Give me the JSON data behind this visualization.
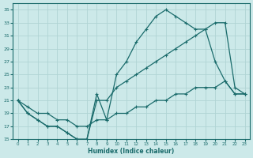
{
  "xlabel": "Humidex (Indice chaleur)",
  "bg_color": "#cce9e9",
  "grid_color": "#b0d4d4",
  "line_color": "#1a6b6b",
  "xlim": [
    -0.5,
    23.5
  ],
  "ylim": [
    15,
    36
  ],
  "xticks": [
    0,
    1,
    2,
    3,
    4,
    5,
    6,
    7,
    8,
    9,
    10,
    11,
    12,
    13,
    14,
    15,
    16,
    17,
    18,
    19,
    20,
    21,
    22,
    23
  ],
  "yticks": [
    15,
    17,
    19,
    21,
    23,
    25,
    27,
    29,
    31,
    33,
    35
  ],
  "line1_x": [
    0,
    1,
    2,
    3,
    4,
    5,
    6,
    7,
    8,
    9,
    10,
    11,
    12,
    13,
    14,
    15,
    16,
    17,
    18,
    19,
    20,
    21,
    22,
    23
  ],
  "line1_y": [
    21,
    19,
    18,
    17,
    17,
    16,
    15,
    15,
    22,
    18,
    25,
    27,
    30,
    32,
    34,
    35,
    34,
    33,
    32,
    32,
    27,
    24,
    22,
    22
  ],
  "line2_x": [
    0,
    1,
    2,
    3,
    4,
    5,
    6,
    7,
    8,
    9,
    10,
    11,
    12,
    13,
    14,
    15,
    16,
    17,
    18,
    19,
    20,
    21,
    22,
    23
  ],
  "line2_y": [
    21,
    19,
    18,
    17,
    17,
    16,
    15,
    15,
    21,
    21,
    23,
    24,
    25,
    26,
    27,
    28,
    29,
    30,
    31,
    32,
    33,
    33,
    23,
    22
  ],
  "line3_x": [
    0,
    1,
    2,
    3,
    4,
    5,
    6,
    7,
    8,
    9,
    10,
    11,
    12,
    13,
    14,
    15,
    16,
    17,
    18,
    19,
    20,
    21,
    22,
    23
  ],
  "line3_y": [
    21,
    20,
    19,
    19,
    18,
    18,
    17,
    17,
    18,
    18,
    19,
    19,
    20,
    20,
    21,
    21,
    22,
    22,
    23,
    23,
    23,
    24,
    22,
    22
  ]
}
